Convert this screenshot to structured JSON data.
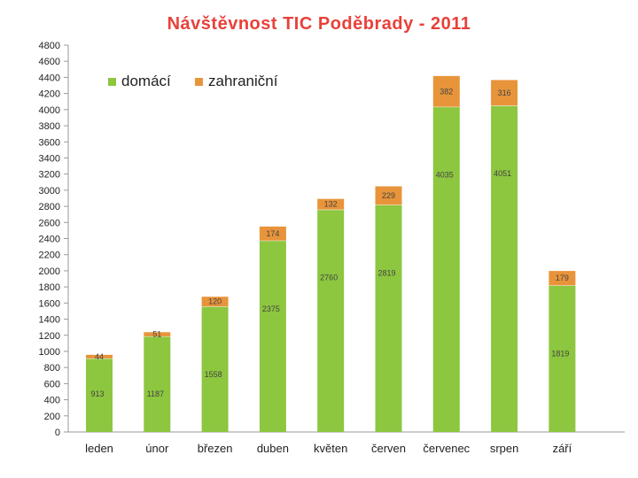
{
  "chart_data": {
    "type": "bar",
    "stacked": true,
    "title": "Návštěvnost TIC Poděbrady - 2011",
    "categories": [
      "leden",
      "únor",
      "březen",
      "duben",
      "květen",
      "červen",
      "červenec",
      "srpen",
      "září"
    ],
    "series": [
      {
        "name": "domácí",
        "color": "#8dc63f",
        "values": [
          913,
          1187,
          1558,
          2375,
          2760,
          2819,
          4035,
          4051,
          1819
        ]
      },
      {
        "name": "zahraniční",
        "color": "#e8943a",
        "values": [
          44,
          51,
          120,
          174,
          132,
          229,
          382,
          316,
          179
        ]
      }
    ],
    "ylim": [
      0,
      4800
    ],
    "ytick_step": 200,
    "grid": false,
    "legend_position": "top-left"
  }
}
